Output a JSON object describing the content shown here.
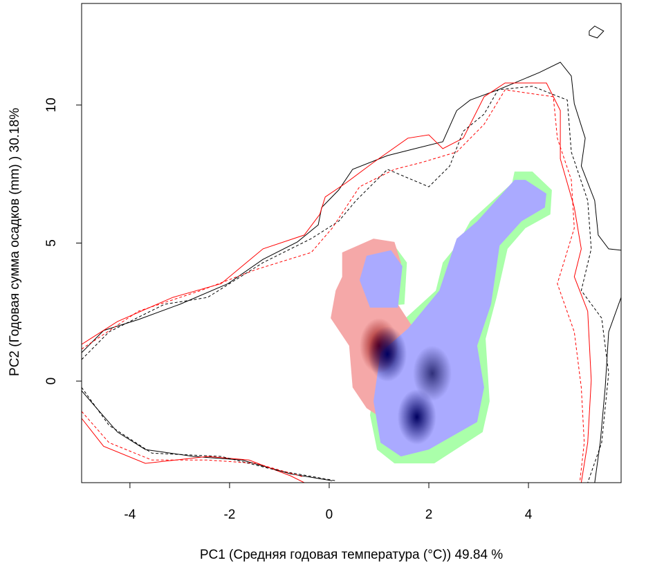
{
  "chart_data": {
    "type": "contour",
    "x_label": "PC1 (Средняя годовая температура (°C)) 49.84 %",
    "y_label": "PC2 (Годовая сумма осадков  (mm) ) 30.18%",
    "xlim": [
      -4.97,
      5.86
    ],
    "ylim": [
      -3.68,
      13.68
    ],
    "xticks": [
      -4,
      -2,
      0,
      2,
      4
    ],
    "yticks": [
      0,
      5,
      10
    ],
    "grid": false,
    "regions": [
      {
        "color": "#aaffaa",
        "x": [
          1.38,
          2.14,
          2.28,
          2.56,
          2.83,
          3.67,
          3.72,
          4.08,
          4.47,
          4.44,
          3.94,
          3.58,
          3.36,
          3.14,
          3.22,
          3.08,
          2.11,
          1.31,
          0.96,
          0.82,
          1.03
        ],
        "y": [
          2.03,
          3.28,
          4.29,
          4.91,
          5.79,
          7.17,
          7.59,
          7.59,
          6.92,
          6.04,
          5.54,
          4.79,
          3.03,
          1.53,
          -0.73,
          -1.85,
          -2.98,
          -2.98,
          -2.48,
          -1.23,
          1.28
        ]
      },
      {
        "color": "#aaffaa",
        "x": [
          0.61,
          1.31,
          1.56,
          1.51,
          0.74,
          0.58
        ],
        "y": [
          4.66,
          4.91,
          4.29,
          2.78,
          2.66,
          3.53
        ]
      },
      {
        "color": "#f5a8a8",
        "x": [
          0.26,
          0.89,
          1.31,
          1.44,
          1.38,
          1.65,
          1.38,
          0.96,
          0.75,
          0.47,
          0.4,
          0.03,
          0.13,
          0.26
        ],
        "y": [
          4.66,
          5.16,
          5.04,
          4.29,
          2.78,
          2.03,
          0.78,
          -1.23,
          -0.98,
          -0.23,
          1.28,
          2.28,
          3.28,
          3.78
        ]
      },
      {
        "color": "#aaaaff",
        "x": [
          1.58,
          2.21,
          2.42,
          2.56,
          2.97,
          3.72,
          3.94,
          4.36,
          4.33,
          3.86,
          3.42,
          3.25,
          2.97,
          3.11,
          2.97,
          2.0,
          1.44,
          1.03,
          0.89,
          1.03
        ],
        "y": [
          1.9,
          3.28,
          4.41,
          5.16,
          5.79,
          7.29,
          7.29,
          6.79,
          6.29,
          5.79,
          4.91,
          2.78,
          1.28,
          -0.23,
          -1.48,
          -2.48,
          -2.73,
          -2.23,
          -0.73,
          1.03
        ]
      },
      {
        "color": "#aaaaff",
        "x": [
          0.75,
          1.24,
          1.47,
          1.38,
          0.82,
          0.61
        ],
        "y": [
          4.54,
          4.74,
          4.16,
          2.66,
          2.66,
          3.66
        ]
      }
    ],
    "hotspots": [
      {
        "color": "#8b0000",
        "x": 1.0,
        "y": 1.28
      },
      {
        "color": "#000060",
        "x": 1.17,
        "y": 0.98
      },
      {
        "color": "#000060",
        "x": 1.76,
        "y": -1.3
      },
      {
        "color": "#30307a",
        "x": 2.07,
        "y": 0.28
      }
    ],
    "series": [
      {
        "color": "#000000",
        "dash": false,
        "x": [
          -4.97,
          -4.53,
          -3.83,
          -3.0,
          -2.03,
          -1.33,
          -0.64,
          -0.22,
          -0.15,
          0.19,
          0.47,
          1.17,
          1.72,
          2.28,
          2.56,
          2.83,
          3.39,
          4.22,
          4.64,
          4.86,
          4.92,
          5.14,
          5.06,
          5.33,
          5.4,
          5.61,
          5.86
        ],
        "y": [
          1.03,
          1.83,
          2.23,
          2.78,
          3.53,
          4.41,
          5.04,
          5.66,
          6.29,
          6.92,
          7.67,
          8.17,
          8.42,
          8.67,
          9.8,
          10.18,
          10.55,
          11.18,
          11.55,
          11.05,
          10.05,
          8.8,
          7.79,
          6.54,
          5.29,
          4.79,
          4.74
        ]
      },
      {
        "color": "#000000",
        "dash": false,
        "x": [
          -4.97,
          -4.67,
          -4.25,
          -3.69,
          -2.72,
          -1.75,
          -0.78,
          0.06
        ],
        "y": [
          -0.35,
          -0.98,
          -1.85,
          -2.48,
          -2.73,
          -2.86,
          -3.36,
          -3.61
        ]
      },
      {
        "color": "#000000",
        "dash": false,
        "x": [
          5.86,
          5.61,
          5.54,
          5.44,
          5.33
        ],
        "y": [
          3.03,
          1.78,
          -0.23,
          -2.23,
          -3.68
        ]
      },
      {
        "color": "#000000",
        "dash": false,
        "x": [
          5.22,
          5.33,
          5.51,
          5.38,
          5.22,
          5.22
        ],
        "y": [
          12.68,
          12.86,
          12.68,
          12.43,
          12.53,
          12.68
        ]
      },
      {
        "color": "#ff0000",
        "dash": false,
        "x": [
          -4.97,
          -4.25,
          -3.14,
          -2.17,
          -1.33,
          -0.5,
          -0.19,
          -0.08,
          0.33,
          0.89,
          1.58,
          2.0,
          2.28,
          2.69,
          3.11,
          3.53,
          4.36,
          4.64,
          4.64,
          4.92,
          5.06,
          4.92,
          5.19,
          5.26,
          5.19,
          5.06
        ],
        "y": [
          1.33,
          2.16,
          3.03,
          3.53,
          4.79,
          5.29,
          6.04,
          6.67,
          7.17,
          7.92,
          8.8,
          8.92,
          8.42,
          8.8,
          10.3,
          10.8,
          10.8,
          9.8,
          8.05,
          6.29,
          4.79,
          3.78,
          2.53,
          0.03,
          -2.23,
          -3.68
        ]
      },
      {
        "color": "#ff0000",
        "dash": false,
        "x": [
          -4.97,
          -4.53,
          -3.69,
          -2.44,
          -1.61,
          -0.78,
          -0.5
        ],
        "y": [
          -1.35,
          -2.36,
          -2.98,
          -2.73,
          -2.86,
          -3.43,
          -3.68
        ]
      },
      {
        "color": "#000000",
        "dash": true,
        "x": [
          -4.97,
          -4.42,
          -3.31,
          -2.44,
          -1.33,
          -0.36,
          0.19,
          0.54,
          1.17,
          2.0,
          2.42,
          2.69,
          3.11,
          3.39,
          4.08,
          4.78,
          4.86,
          5.19,
          5.26,
          5.06,
          5.47,
          5.61,
          5.47,
          5.19
        ],
        "y": [
          0.78,
          1.78,
          2.78,
          3.03,
          4.29,
          5.16,
          5.79,
          6.54,
          7.67,
          7.04,
          7.79,
          9.05,
          9.67,
          10.55,
          10.68,
          10.18,
          8.3,
          6.54,
          4.79,
          3.28,
          2.28,
          0.28,
          -2.23,
          -3.68
        ]
      },
      {
        "color": "#000000",
        "dash": true,
        "x": [
          -4.97,
          -4.42,
          -3.56,
          -2.17,
          -1.06,
          0.13
        ],
        "y": [
          -0.23,
          -1.6,
          -2.61,
          -2.73,
          -3.23,
          -3.61
        ]
      },
      {
        "color": "#ff0000",
        "dash": true,
        "x": [
          -4.97,
          -3.83,
          -2.58,
          -1.47,
          -0.36,
          0.06,
          0.61,
          1.31,
          1.86,
          2.56,
          3.11,
          3.53,
          4.5,
          4.58,
          4.86,
          4.92,
          4.58,
          4.92,
          5.06,
          5.12,
          5.03
        ],
        "y": [
          1.16,
          2.53,
          3.28,
          4.04,
          4.66,
          5.54,
          7.04,
          7.67,
          7.92,
          8.3,
          9.3,
          10.55,
          10.3,
          8.8,
          7.29,
          5.54,
          3.53,
          1.78,
          -0.23,
          -2.23,
          -3.68
        ]
      },
      {
        "color": "#ff0000",
        "dash": true,
        "x": [
          -4.97,
          -4.42,
          -3.56,
          -2.44,
          -1.47,
          -0.5
        ],
        "y": [
          -1.1,
          -2.23,
          -2.86,
          -2.86,
          -2.98,
          -3.48
        ]
      }
    ]
  }
}
